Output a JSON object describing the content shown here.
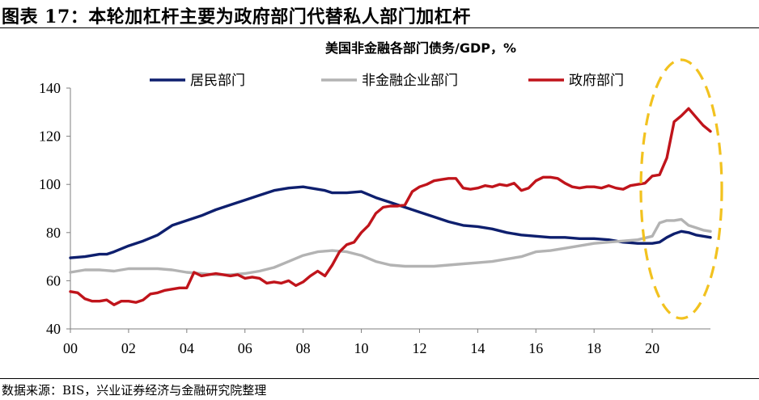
{
  "figure": {
    "title": "图表 17：本轮加杠杆主要为政府部门代替私人部门加杠杆",
    "source": "数据来源：BIS，兴业证券经济与金融研究院整理"
  },
  "chart_data": {
    "type": "line",
    "title": "美国非金融各部门债务/GDP，%",
    "xlabel": "",
    "ylabel": "",
    "x_range": [
      2000.0,
      2022.0
    ],
    "ylim": [
      40,
      140
    ],
    "y_ticks": [
      40,
      60,
      80,
      100,
      120,
      140
    ],
    "x_ticks": [
      {
        "value": 2000,
        "label": "00"
      },
      {
        "value": 2002,
        "label": "02"
      },
      {
        "value": 2004,
        "label": "04"
      },
      {
        "value": 2006,
        "label": "06"
      },
      {
        "value": 2008,
        "label": "08"
      },
      {
        "value": 2010,
        "label": "10"
      },
      {
        "value": 2012,
        "label": "12"
      },
      {
        "value": 2014,
        "label": "14"
      },
      {
        "value": 2016,
        "label": "16"
      },
      {
        "value": 2018,
        "label": "18"
      },
      {
        "value": 2020,
        "label": "20"
      }
    ],
    "grid": false,
    "legend_position": "top",
    "annotation": "dashed yellow ellipse highlighting 2020-2022",
    "series": [
      {
        "name": "居民部门",
        "color": "#0e1f6e",
        "x": [
          2000.0,
          2000.5,
          2001.0,
          2001.25,
          2001.5,
          2002.0,
          2002.5,
          2003.0,
          2003.25,
          2003.5,
          2004.0,
          2004.5,
          2005.0,
          2005.5,
          2006.0,
          2006.5,
          2007.0,
          2007.5,
          2008.0,
          2008.25,
          2008.5,
          2008.75,
          2009.0,
          2009.5,
          2010.0,
          2010.5,
          2011.0,
          2011.5,
          2012.0,
          2012.5,
          2013.0,
          2013.5,
          2014.0,
          2014.5,
          2015.0,
          2015.5,
          2016.0,
          2016.5,
          2017.0,
          2017.5,
          2018.0,
          2018.5,
          2019.0,
          2019.5,
          2020.0,
          2020.25,
          2020.5,
          2020.75,
          2021.0,
          2021.25,
          2021.5,
          2021.75,
          2022.0
        ],
        "values": [
          69.5,
          70.0,
          71.0,
          71.0,
          72.0,
          74.5,
          76.5,
          79.0,
          81.0,
          83.0,
          85.0,
          87.0,
          89.5,
          91.5,
          93.5,
          95.5,
          97.5,
          98.5,
          99.0,
          98.5,
          98.0,
          97.5,
          96.5,
          96.5,
          97.0,
          94.5,
          92.5,
          90.5,
          88.5,
          86.5,
          84.5,
          83.0,
          82.5,
          81.5,
          80.0,
          79.0,
          78.5,
          78.0,
          78.0,
          77.5,
          77.5,
          77.0,
          76.0,
          75.5,
          75.5,
          76.0,
          78.0,
          79.5,
          80.5,
          80.0,
          79.0,
          78.5,
          78.0
        ]
      },
      {
        "name": "非金融企业部门",
        "color": "#b3b3b3",
        "x": [
          2000.0,
          2000.5,
          2001.0,
          2001.5,
          2002.0,
          2002.5,
          2003.0,
          2003.5,
          2004.0,
          2004.5,
          2005.0,
          2005.5,
          2006.0,
          2006.5,
          2007.0,
          2007.5,
          2008.0,
          2008.5,
          2009.0,
          2009.5,
          2010.0,
          2010.5,
          2011.0,
          2011.5,
          2012.0,
          2012.5,
          2013.0,
          2013.5,
          2014.0,
          2014.5,
          2015.0,
          2015.5,
          2016.0,
          2016.5,
          2017.0,
          2017.5,
          2018.0,
          2018.5,
          2019.0,
          2019.5,
          2020.0,
          2020.25,
          2020.5,
          2020.75,
          2021.0,
          2021.25,
          2021.5,
          2021.75,
          2022.0
        ],
        "values": [
          63.5,
          64.5,
          64.5,
          64.0,
          65.0,
          65.0,
          65.0,
          64.5,
          63.5,
          63.0,
          62.5,
          62.5,
          63.0,
          64.0,
          65.5,
          68.0,
          70.5,
          72.0,
          72.5,
          72.0,
          70.5,
          68.0,
          66.5,
          66.0,
          66.0,
          66.0,
          66.5,
          67.0,
          67.5,
          68.0,
          69.0,
          70.0,
          72.0,
          72.5,
          73.5,
          74.5,
          75.5,
          76.0,
          76.5,
          77.0,
          78.5,
          84.0,
          85.0,
          85.0,
          85.5,
          83.0,
          82.0,
          81.0,
          80.5
        ]
      },
      {
        "name": "政府部门",
        "color": "#c0141b",
        "x": [
          2000.0,
          2000.25,
          2000.5,
          2000.75,
          2001.0,
          2001.25,
          2001.5,
          2001.75,
          2002.0,
          2002.25,
          2002.5,
          2002.75,
          2003.0,
          2003.25,
          2003.5,
          2003.75,
          2004.0,
          2004.25,
          2004.5,
          2004.75,
          2005.0,
          2005.25,
          2005.5,
          2005.75,
          2006.0,
          2006.25,
          2006.5,
          2006.75,
          2007.0,
          2007.25,
          2007.5,
          2007.75,
          2008.0,
          2008.25,
          2008.5,
          2008.75,
          2009.0,
          2009.25,
          2009.5,
          2009.75,
          2010.0,
          2010.25,
          2010.5,
          2010.75,
          2011.0,
          2011.25,
          2011.5,
          2011.75,
          2012.0,
          2012.25,
          2012.5,
          2012.75,
          2013.0,
          2013.25,
          2013.5,
          2013.75,
          2014.0,
          2014.25,
          2014.5,
          2014.75,
          2015.0,
          2015.25,
          2015.5,
          2015.75,
          2016.0,
          2016.25,
          2016.5,
          2016.75,
          2017.0,
          2017.25,
          2017.5,
          2017.75,
          2018.0,
          2018.25,
          2018.5,
          2018.75,
          2019.0,
          2019.25,
          2019.5,
          2019.75,
          2020.0,
          2020.25,
          2020.5,
          2020.75,
          2021.0,
          2021.25,
          2021.5,
          2021.75,
          2022.0
        ],
        "values": [
          55.5,
          55.0,
          52.5,
          51.5,
          51.5,
          52.0,
          50.0,
          51.5,
          51.5,
          51.0,
          52.0,
          54.5,
          55.0,
          56.0,
          56.5,
          57.0,
          57.0,
          63.5,
          62.0,
          62.5,
          63.0,
          62.5,
          62.0,
          62.5,
          61.0,
          61.5,
          61.0,
          59.0,
          59.5,
          59.0,
          60.0,
          58.0,
          59.5,
          62.0,
          64.0,
          62.0,
          66.5,
          72.0,
          75.0,
          76.0,
          80.0,
          83.0,
          88.0,
          90.5,
          91.0,
          91.0,
          91.5,
          97.0,
          99.0,
          100.0,
          101.5,
          102.0,
          102.5,
          102.5,
          98.5,
          98.0,
          98.5,
          99.5,
          99.0,
          100.0,
          99.5,
          100.5,
          97.5,
          98.5,
          101.5,
          103.0,
          103.0,
          102.5,
          100.5,
          99.0,
          98.5,
          99.0,
          99.0,
          98.5,
          99.5,
          98.5,
          98.0,
          99.5,
          100.0,
          100.5,
          103.5,
          104.0,
          111.0,
          126.0,
          128.5,
          131.5,
          128.0,
          124.5,
          122.0
        ]
      }
    ]
  }
}
